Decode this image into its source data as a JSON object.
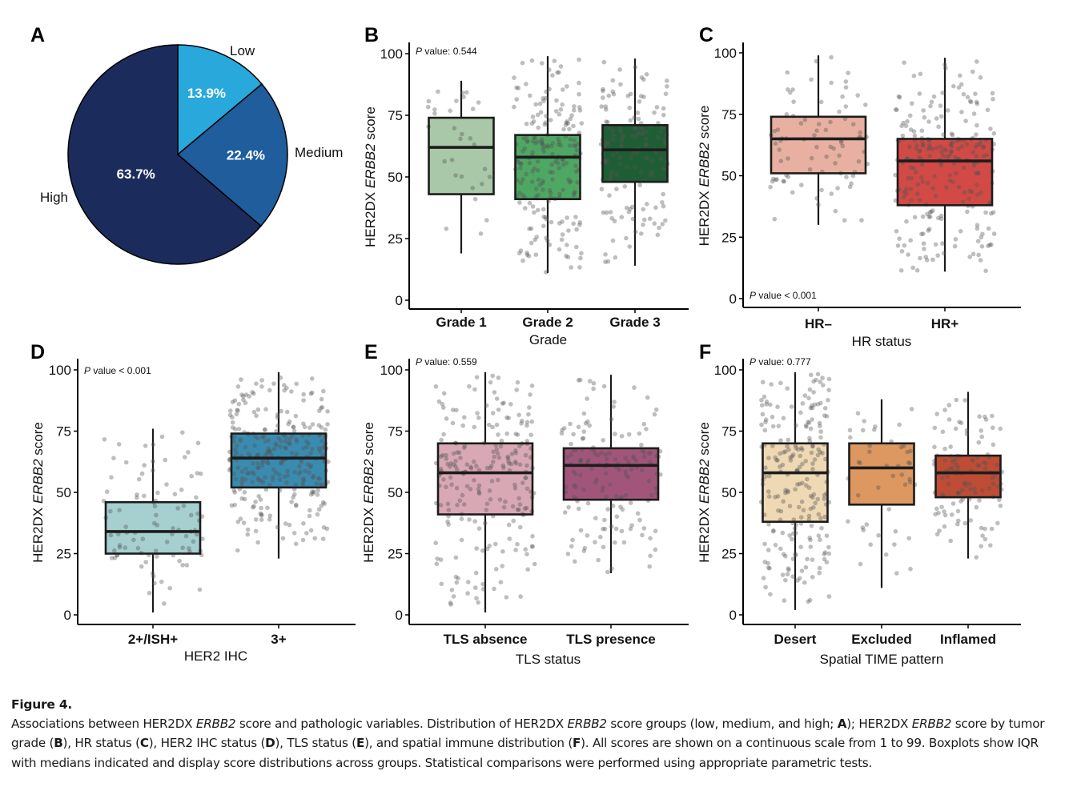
{
  "figure": {
    "caption_title": "Figure 4.",
    "caption_parts": [
      {
        "t": "Associations between HER2DX ",
        "s": "n"
      },
      {
        "t": "ERBB2",
        "s": "i"
      },
      {
        "t": " score and pathologic variables. Distribution of HER2DX ",
        "s": "n"
      },
      {
        "t": "ERBB2",
        "s": "i"
      },
      {
        "t": " score groups (low, medium, and high; ",
        "s": "n"
      },
      {
        "t": "A",
        "s": "b"
      },
      {
        "t": "); HER2DX ",
        "s": "n"
      },
      {
        "t": "ERBB2",
        "s": "i"
      },
      {
        "t": " score by tumor grade (",
        "s": "n"
      },
      {
        "t": "B",
        "s": "b"
      },
      {
        "t": "), HR status (",
        "s": "n"
      },
      {
        "t": "C",
        "s": "b"
      },
      {
        "t": "), HER2 IHC status (",
        "s": "n"
      },
      {
        "t": "D",
        "s": "b"
      },
      {
        "t": "), TLS status (",
        "s": "n"
      },
      {
        "t": "E",
        "s": "b"
      },
      {
        "t": "), and spatial immune distribution (",
        "s": "n"
      },
      {
        "t": "F",
        "s": "b"
      },
      {
        "t": "). All scores are shown on a continuous scale from 1 to 99. Boxplots show IQR with medians indicated and display score distributions across groups. Statistical comparisons were performed using appropriate parametric tests.",
        "s": "n"
      }
    ]
  },
  "chart_data": [
    {
      "panel": "A",
      "type": "pie",
      "title": "",
      "slices": [
        {
          "label": "Low",
          "value": 13.9,
          "text": "13.9%",
          "color": "#29a8dc"
        },
        {
          "label": "Medium",
          "value": 22.4,
          "text": "22.4%",
          "color": "#1f5d9c"
        },
        {
          "label": "High",
          "value": 63.7,
          "text": "63.7%",
          "color": "#1b2c5c"
        }
      ],
      "start": "12 o'clock, clockwise"
    },
    {
      "panel": "B",
      "type": "box",
      "ylabel_pre": "HER2DX ",
      "ylabel_it": "ERBB2",
      "ylabel_post": " score",
      "xlabel": "Grade",
      "annotation": {
        "p": "P",
        "text": " value: 0.544",
        "position": "top-left"
      },
      "ylim": [
        0,
        100
      ],
      "yticks": [
        0,
        25,
        50,
        75,
        100
      ],
      "groups": [
        {
          "name": "Grade 1",
          "min": 19,
          "q1": 43,
          "median": 62,
          "q3": 74,
          "max": 89,
          "n_points": 30,
          "color": "#a9c8a7"
        },
        {
          "name": "Grade 2",
          "min": 11,
          "q1": 41,
          "median": 58,
          "q3": 67,
          "max": 99,
          "n_points": 210,
          "color": "#4fa764"
        },
        {
          "name": "Grade 3",
          "min": 14,
          "q1": 48,
          "median": 61,
          "q3": 71,
          "max": 98,
          "n_points": 150,
          "color": "#1f5e35"
        }
      ]
    },
    {
      "panel": "C",
      "type": "box",
      "ylabel_pre": "HER2DX ",
      "ylabel_it": "ERBB2",
      "ylabel_post": " score",
      "xlabel": "HR status",
      "annotation": {
        "p": "P",
        "text": " value < 0.001",
        "position": "bottom-left"
      },
      "ylim": [
        0,
        100
      ],
      "yticks": [
        0,
        25,
        50,
        75,
        100
      ],
      "groups": [
        {
          "name": "HR–",
          "min": 30,
          "q1": 51,
          "median": 65,
          "q3": 74,
          "max": 99,
          "n_points": 85,
          "color": "#e8b0a1"
        },
        {
          "name": "HR+",
          "min": 11,
          "q1": 38,
          "median": 56,
          "q3": 65,
          "max": 98,
          "n_points": 250,
          "color": "#d24a45"
        }
      ]
    },
    {
      "panel": "D",
      "type": "box",
      "ylabel_pre": "HER2DX ",
      "ylabel_it": "ERBB2",
      "ylabel_post": " score",
      "xlabel": "HER2 IHC",
      "annotation": {
        "p": "P",
        "text": " value < 0.001",
        "position": "top-left"
      },
      "ylim": [
        0,
        100
      ],
      "yticks": [
        0,
        25,
        50,
        75,
        100
      ],
      "groups": [
        {
          "name": "2+/ISH+",
          "min": 1,
          "q1": 25,
          "median": 34,
          "q3": 46,
          "max": 76,
          "n_points": 95,
          "color": "#a6cfcf"
        },
        {
          "name": "3+",
          "min": 23,
          "q1": 52,
          "median": 64,
          "q3": 74,
          "max": 99,
          "n_points": 300,
          "color": "#3a8bb0"
        }
      ]
    },
    {
      "panel": "E",
      "type": "box",
      "ylabel_pre": "HER2DX ",
      "ylabel_it": "ERBB2",
      "ylabel_post": " score",
      "xlabel": "TLS status",
      "annotation": {
        "p": "P",
        "text": " value: 0.559",
        "position": "top-left"
      },
      "ylim": [
        0,
        100
      ],
      "yticks": [
        0,
        25,
        50,
        75,
        100
      ],
      "groups": [
        {
          "name": "TLS absence",
          "min": 1,
          "q1": 41,
          "median": 58,
          "q3": 70,
          "max": 99,
          "n_points": 230,
          "color": "#d9a8b5"
        },
        {
          "name": "TLS presence",
          "min": 17,
          "q1": 47,
          "median": 61,
          "q3": 68,
          "max": 98,
          "n_points": 160,
          "color": "#a2557a"
        }
      ]
    },
    {
      "panel": "F",
      "type": "box",
      "ylabel_pre": "HER2DX ",
      "ylabel_it": "ERBB2",
      "ylabel_post": " score",
      "xlabel": "Spatial TIME pattern",
      "annotation": {
        "p": "P",
        "text": " value: 0.777",
        "position": "top-left"
      },
      "ylim": [
        0,
        100
      ],
      "yticks": [
        0,
        25,
        50,
        75,
        100
      ],
      "groups": [
        {
          "name": "Desert",
          "min": 2,
          "q1": 38,
          "median": 58,
          "q3": 70,
          "max": 99,
          "n_points": 220,
          "color": "#efd8b4"
        },
        {
          "name": "Excluded",
          "min": 11,
          "q1": 45,
          "median": 60,
          "q3": 70,
          "max": 88,
          "n_points": 45,
          "color": "#dd9760"
        },
        {
          "name": "Inflamed",
          "min": 23,
          "q1": 48,
          "median": 58,
          "q3": 65,
          "max": 91,
          "n_points": 120,
          "color": "#bf4c35"
        }
      ]
    }
  ]
}
